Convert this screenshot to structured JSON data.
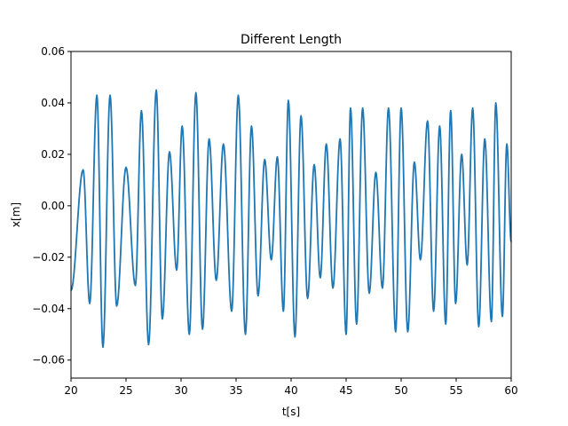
{
  "chart_data": {
    "type": "line",
    "title": "Different Length",
    "xlabel": "t[s]",
    "ylabel": "x[m]",
    "xlim": [
      20,
      60
    ],
    "ylim": [
      -0.067,
      0.06
    ],
    "xticks": [
      20,
      25,
      30,
      35,
      40,
      45,
      50,
      55,
      60
    ],
    "yticks": [
      -0.06,
      -0.04,
      -0.02,
      0.0,
      0.02,
      0.04,
      0.06
    ],
    "xtick_labels": [
      "20",
      "25",
      "30",
      "35",
      "40",
      "45",
      "50",
      "55",
      "60"
    ],
    "ytick_labels": [
      "−0.06",
      "−0.04",
      "−0.02",
      "0.00",
      "0.02",
      "0.04",
      "0.06"
    ],
    "grid": false,
    "series": [
      {
        "color": "#1f77b4",
        "x": [
          20.0,
          21.1,
          21.7,
          22.35,
          22.9,
          23.55,
          24.15,
          25.0,
          25.85,
          26.4,
          27.05,
          27.75,
          28.3,
          28.95,
          29.6,
          30.1,
          30.75,
          31.35,
          31.95,
          32.55,
          33.2,
          33.85,
          34.6,
          35.2,
          35.85,
          36.4,
          37.0,
          37.6,
          38.2,
          38.75,
          39.3,
          39.75,
          40.35,
          40.9,
          41.5,
          42.1,
          42.65,
          43.2,
          43.8,
          44.45,
          45.0,
          45.4,
          45.95,
          46.5,
          47.1,
          47.7,
          48.3,
          48.85,
          49.5,
          50.0,
          50.6,
          51.2,
          51.75,
          52.4,
          52.95,
          53.5,
          54.05,
          54.5,
          54.95,
          55.5,
          56.0,
          56.5,
          57.05,
          57.6,
          58.2,
          58.6,
          59.2,
          59.6,
          60.0
        ],
        "y": [
          -0.033,
          0.014,
          -0.038,
          0.043,
          -0.055,
          0.043,
          -0.039,
          0.015,
          -0.031,
          0.037,
          -0.054,
          0.045,
          -0.044,
          0.021,
          -0.025,
          0.031,
          -0.05,
          0.044,
          -0.048,
          0.026,
          -0.029,
          0.024,
          -0.041,
          0.043,
          -0.05,
          0.031,
          -0.035,
          0.018,
          -0.021,
          0.019,
          -0.041,
          0.041,
          -0.051,
          0.035,
          -0.036,
          0.016,
          -0.028,
          0.024,
          -0.032,
          0.026,
          -0.05,
          0.038,
          -0.046,
          0.038,
          -0.034,
          0.013,
          -0.032,
          0.038,
          -0.049,
          0.038,
          -0.049,
          0.017,
          -0.021,
          0.033,
          -0.041,
          0.031,
          -0.046,
          0.037,
          -0.038,
          0.02,
          -0.023,
          0.038,
          -0.047,
          0.026,
          -0.045,
          0.04,
          -0.043,
          0.024,
          -0.014
        ]
      }
    ]
  }
}
